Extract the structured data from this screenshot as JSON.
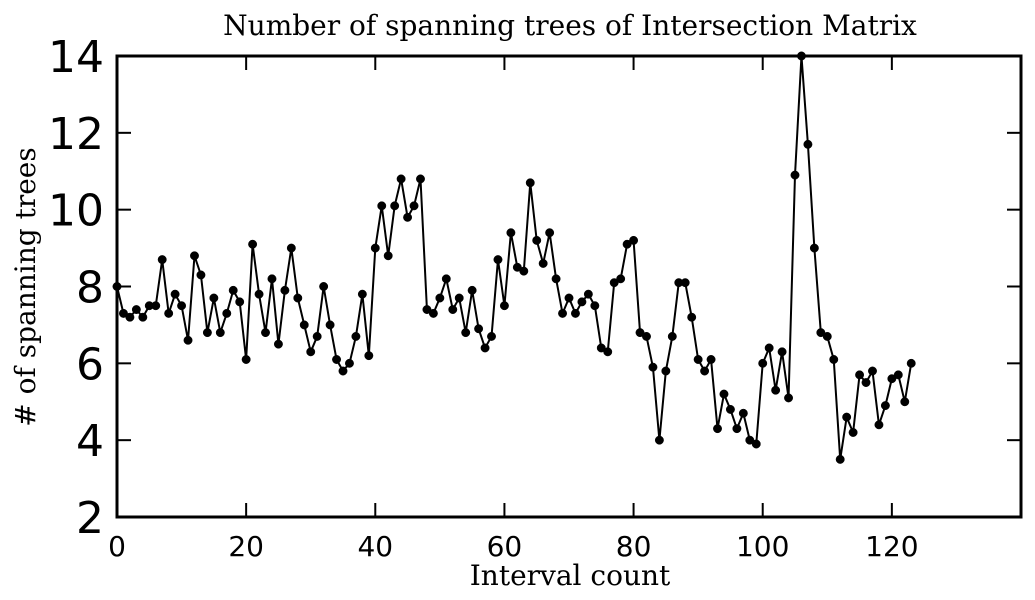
{
  "chart_data": {
    "type": "line",
    "title": "Number of spanning trees of Intersection Matrix",
    "xlabel": "Interval count",
    "ylabel": "# of spanning trees",
    "xlim": [
      0,
      140
    ],
    "ylim": [
      2,
      14
    ],
    "xticks": [
      0,
      20,
      40,
      60,
      80,
      100,
      120
    ],
    "yticks": [
      2,
      4,
      6,
      8,
      10,
      12,
      14
    ],
    "xtick_labels": [
      "0",
      "20",
      "40",
      "60",
      "80",
      "100",
      "120"
    ],
    "ytick_labels": [
      "2",
      "4",
      "6",
      "8",
      "10",
      "12",
      "14"
    ],
    "grid": false,
    "legend": "none",
    "line_color": "#000000",
    "marker": "circle",
    "series": [
      {
        "x": [
          0,
          1,
          2,
          3,
          4,
          5,
          6,
          7,
          8,
          9,
          10,
          11,
          12,
          13,
          14,
          15,
          16,
          17,
          18,
          19,
          20,
          21,
          22,
          23,
          24,
          25,
          26,
          27,
          28,
          29,
          30,
          31,
          32,
          33,
          34,
          35,
          36,
          37,
          38,
          39,
          40,
          41,
          42,
          43,
          44,
          45,
          46,
          47,
          48,
          49,
          50,
          51,
          52,
          53,
          54,
          55,
          56,
          57,
          58,
          59,
          60,
          61,
          62,
          63,
          64,
          65,
          66,
          67,
          68,
          69,
          70,
          71,
          72,
          73,
          74,
          75,
          76,
          77,
          78,
          79,
          80,
          81,
          82,
          83,
          84,
          85,
          86,
          87,
          88,
          89,
          90,
          91,
          92,
          93,
          94,
          95,
          96,
          97,
          98,
          99,
          100,
          101,
          102,
          103,
          104,
          105,
          106,
          107,
          108,
          109,
          110,
          111,
          112,
          113,
          114,
          115,
          116,
          117,
          118,
          119,
          120,
          121,
          122,
          123
        ],
        "values": [
          8.0,
          7.3,
          7.2,
          7.4,
          7.2,
          7.5,
          7.5,
          8.7,
          7.3,
          7.8,
          7.5,
          6.6,
          8.8,
          8.3,
          6.8,
          7.7,
          6.8,
          7.3,
          7.9,
          7.6,
          6.1,
          9.1,
          7.8,
          6.8,
          8.2,
          6.5,
          7.9,
          9.0,
          7.7,
          7.0,
          6.3,
          6.7,
          8.0,
          7.0,
          6.1,
          5.8,
          6.0,
          6.7,
          7.8,
          6.2,
          9.0,
          10.1,
          8.8,
          10.1,
          10.8,
          9.8,
          10.1,
          10.8,
          7.4,
          7.3,
          7.7,
          8.2,
          7.4,
          7.7,
          6.8,
          7.9,
          6.9,
          6.4,
          6.7,
          8.7,
          7.5,
          9.4,
          8.5,
          8.4,
          10.7,
          9.2,
          8.6,
          9.4,
          8.2,
          7.3,
          7.7,
          7.3,
          7.6,
          7.8,
          7.5,
          6.4,
          6.3,
          8.1,
          8.2,
          9.1,
          9.2,
          6.8,
          6.7,
          5.9,
          4.0,
          5.8,
          6.7,
          8.1,
          8.1,
          7.2,
          6.1,
          5.8,
          6.1,
          4.3,
          5.2,
          4.8,
          4.3,
          4.7,
          4.0,
          3.9,
          6.0,
          6.4,
          5.3,
          6.3,
          5.1,
          10.9,
          14.0,
          11.7,
          9.0,
          6.8,
          6.7,
          6.1,
          3.5,
          4.6,
          4.2,
          5.7,
          5.5,
          5.8,
          4.4,
          4.9,
          5.6,
          5.7,
          5.0,
          6.0
        ]
      }
    ]
  }
}
